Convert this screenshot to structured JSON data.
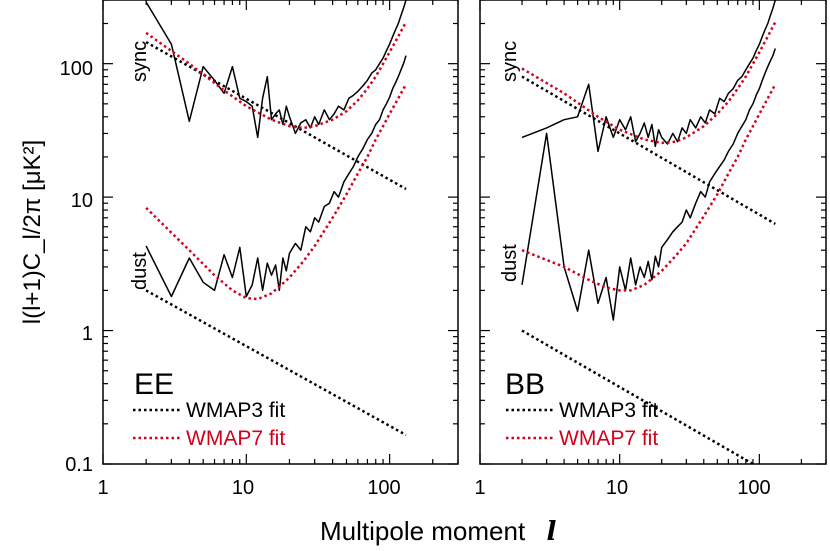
{
  "chart_data": [
    {
      "type": "line",
      "panel_label": "EE",
      "xlabel": "Multipole moment",
      "xlabel_symbol": "l",
      "ylabel": "l(l+1)C_l/2π [μK²]",
      "xlim": [
        1,
        300
      ],
      "ylim": [
        0.1,
        300
      ],
      "x_scale": "log",
      "y_scale": "log",
      "x_ticks": [
        1,
        10,
        100
      ],
      "x_tick_labels": [
        "1",
        "10",
        "100"
      ],
      "y_ticks": [
        0.1,
        1,
        10,
        100
      ],
      "y_tick_labels": [
        "0.1",
        "1",
        "10",
        "100"
      ],
      "curve_labels": {
        "sync": "sync",
        "dust": "dust"
      },
      "legend": {
        "position": "bottom-left",
        "entries": [
          {
            "label": "WMAP3 fit",
            "color": "#000000",
            "style": "dotted"
          },
          {
            "label": "WMAP7 fit",
            "color": "#d0021b",
            "style": "dotted"
          }
        ]
      },
      "series": [
        {
          "role": "sync-data",
          "color": "#000000",
          "style": "solid",
          "x": [
            2,
            3,
            4,
            5,
            6,
            7,
            8,
            9,
            10,
            11,
            12,
            13,
            14,
            15,
            16,
            17,
            18,
            19,
            20,
            22,
            24,
            26,
            28,
            30,
            32,
            35,
            38,
            41,
            44,
            48,
            52,
            56,
            60,
            65,
            70,
            75,
            80,
            85,
            90,
            95,
            100,
            105,
            110,
            115,
            120,
            125,
            130
          ],
          "y": [
            290,
            140,
            37,
            95,
            75,
            60,
            95,
            55,
            52,
            48,
            28,
            55,
            80,
            38,
            42,
            45,
            35,
            48,
            40,
            30,
            36,
            38,
            33,
            40,
            35,
            45,
            38,
            42,
            48,
            45,
            55,
            58,
            62,
            68,
            75,
            85,
            90,
            100,
            110,
            125,
            140,
            160,
            180,
            200,
            230,
            260,
            300
          ]
        },
        {
          "role": "sync-wmap3",
          "color": "#000000",
          "style": "dotted",
          "x": [
            2,
            130
          ],
          "y": [
            145,
            11.5
          ]
        },
        {
          "role": "sync-wmap7",
          "color": "#d0021b",
          "style": "dotted",
          "x": [
            2,
            4,
            7,
            10,
            15,
            20,
            25,
            30,
            40,
            50,
            60,
            70,
            80,
            90,
            100,
            115,
            130
          ],
          "y": [
            170,
            100,
            63,
            48,
            38,
            34,
            33,
            34,
            38,
            44,
            53,
            65,
            80,
            100,
            122,
            160,
            205
          ]
        },
        {
          "role": "dust-data",
          "color": "#000000",
          "style": "solid",
          "x": [
            2,
            3,
            4,
            5,
            6,
            7,
            8,
            9,
            10,
            11,
            12,
            13,
            14,
            15,
            16,
            17,
            18,
            19,
            20,
            22,
            24,
            26,
            28,
            30,
            32,
            35,
            38,
            41,
            44,
            48,
            52,
            56,
            60,
            65,
            70,
            75,
            80,
            85,
            90,
            95,
            100,
            105,
            110,
            115,
            120,
            125,
            130
          ],
          "y": [
            4.3,
            1.8,
            3.5,
            2.3,
            2.0,
            3.7,
            2.5,
            4.2,
            1.8,
            2.2,
            3.5,
            2.0,
            3.2,
            2.6,
            3.1,
            2.0,
            3.5,
            2.8,
            3.8,
            4.5,
            4.0,
            6.0,
            5.5,
            7.0,
            6.5,
            8.5,
            9.0,
            11,
            10,
            13,
            15,
            17,
            20,
            23,
            27,
            30,
            35,
            38,
            45,
            50,
            56,
            65,
            72,
            80,
            90,
            100,
            115
          ]
        },
        {
          "role": "dust-wmap3",
          "color": "#000000",
          "style": "dotted",
          "x": [
            2,
            130
          ],
          "y": [
            2.0,
            0.165
          ]
        },
        {
          "role": "dust-wmap7",
          "color": "#d0021b",
          "style": "dotted",
          "x": [
            2,
            4,
            6,
            8,
            10,
            12,
            15,
            20,
            25,
            30,
            40,
            50,
            60,
            70,
            80,
            90,
            100,
            115,
            130
          ],
          "y": [
            8.3,
            4.0,
            2.6,
            2.0,
            1.75,
            1.72,
            1.9,
            2.5,
            3.3,
            4.3,
            7.0,
            10.5,
            15,
            20,
            27,
            34,
            42,
            55,
            70
          ]
        }
      ]
    },
    {
      "type": "line",
      "panel_label": "BB",
      "xlim": [
        1,
        300
      ],
      "ylim": [
        0.1,
        300
      ],
      "x_scale": "log",
      "y_scale": "log",
      "x_ticks": [
        1,
        10,
        100
      ],
      "x_tick_labels": [
        "1",
        "10",
        "100"
      ],
      "curve_labels": {
        "sync": "sync",
        "dust": "dust"
      },
      "legend": {
        "position": "bottom-left",
        "entries": [
          {
            "label": "WMAP3 fit",
            "color": "#000000",
            "style": "dotted"
          },
          {
            "label": "WMAP7 fit",
            "color": "#d0021b",
            "style": "dotted"
          }
        ]
      },
      "series": [
        {
          "role": "sync-data",
          "color": "#000000",
          "style": "solid",
          "x": [
            2,
            3,
            4,
            5,
            6,
            7,
            8,
            9,
            10,
            11,
            12,
            13,
            14,
            15,
            16,
            17,
            18,
            19,
            20,
            22,
            24,
            26,
            28,
            30,
            32,
            35,
            38,
            41,
            44,
            48,
            52,
            56,
            60,
            65,
            70,
            75,
            80,
            85,
            90,
            95,
            100,
            105,
            110,
            115,
            120,
            125,
            130
          ],
          "y": [
            28,
            33,
            38,
            40,
            70,
            22,
            40,
            28,
            38,
            32,
            40,
            26,
            30,
            36,
            28,
            35,
            24,
            32,
            28,
            25,
            30,
            26,
            33,
            30,
            38,
            33,
            40,
            36,
            45,
            42,
            55,
            52,
            60,
            65,
            75,
            80,
            90,
            100,
            110,
            125,
            140,
            160,
            180,
            200,
            230,
            260,
            300
          ]
        },
        {
          "role": "sync-wmap3",
          "color": "#000000",
          "style": "dotted",
          "x": [
            2,
            130
          ],
          "y": [
            80,
            6.3
          ]
        },
        {
          "role": "sync-wmap7",
          "color": "#d0021b",
          "style": "dotted",
          "x": [
            2,
            4,
            7,
            10,
            15,
            20,
            25,
            30,
            40,
            50,
            60,
            70,
            80,
            90,
            100,
            115,
            130
          ],
          "y": [
            92,
            60,
            40,
            32,
            27,
            25.5,
            26,
            28,
            34,
            42,
            52,
            65,
            80,
            100,
            122,
            160,
            205
          ]
        },
        {
          "role": "dust-data",
          "color": "#000000",
          "style": "solid",
          "x": [
            2,
            3,
            4,
            5,
            6,
            7,
            8,
            9,
            10,
            11,
            12,
            13,
            14,
            15,
            16,
            17,
            18,
            19,
            20,
            22,
            24,
            26,
            28,
            30,
            32,
            35,
            38,
            41,
            44,
            48,
            52,
            56,
            60,
            65,
            70,
            75,
            80,
            85,
            90,
            95,
            100,
            105,
            110,
            115,
            120,
            125,
            130
          ],
          "y": [
            2.2,
            30,
            3.0,
            1.4,
            4.0,
            1.6,
            2.5,
            1.2,
            3.0,
            2.0,
            3.5,
            2.2,
            3.0,
            2.5,
            3.3,
            2.4,
            3.6,
            3.0,
            4.2,
            4.8,
            5.5,
            6.0,
            6.5,
            8.0,
            7.0,
            9.0,
            11,
            10,
            13,
            15,
            17,
            19,
            22,
            25,
            30,
            34,
            38,
            45,
            50,
            58,
            65,
            75,
            85,
            95,
            105,
            115,
            130
          ]
        },
        {
          "role": "dust-wmap3",
          "color": "#000000",
          "style": "dotted",
          "x": [
            2,
            130
          ],
          "y": [
            1.0,
            0.08
          ]
        },
        {
          "role": "dust-wmap7",
          "color": "#d0021b",
          "style": "dotted",
          "x": [
            2,
            4,
            6,
            8,
            10,
            12,
            15,
            20,
            25,
            30,
            40,
            50,
            60,
            70,
            80,
            90,
            100,
            115,
            130
          ],
          "y": [
            4.0,
            3.0,
            2.4,
            2.1,
            2.0,
            2.0,
            2.2,
            2.8,
            3.6,
            4.5,
            7.2,
            10.5,
            15,
            20,
            27,
            34,
            42,
            55,
            70
          ]
        }
      ]
    }
  ]
}
